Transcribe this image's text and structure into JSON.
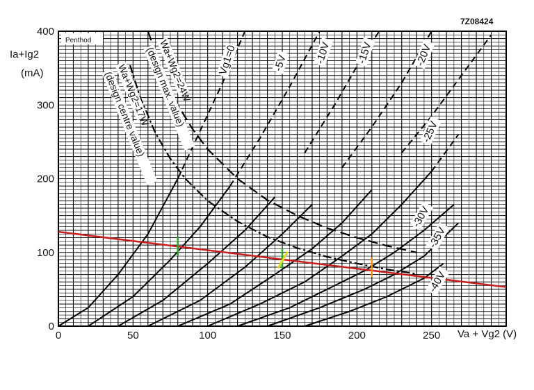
{
  "chart_data": {
    "type": "line",
    "ref_code": "7Z08424",
    "legend_box": "Penthod",
    "xlabel": "Va + Vg2 (V)",
    "ylabel": [
      "Ia+Ig2",
      "(mA)"
    ],
    "xlim": [
      0,
      300
    ],
    "ylim": [
      0,
      400
    ],
    "x_ticks": [
      0,
      50,
      100,
      150,
      200,
      250
    ],
    "y_ticks": [
      0,
      100,
      200,
      300,
      400
    ],
    "grid": true,
    "series": [
      {
        "name": "Vg1=0",
        "style": "solid-dashed",
        "points": [
          [
            0,
            0
          ],
          [
            20,
            25
          ],
          [
            40,
            70
          ],
          [
            60,
            125
          ],
          [
            80,
            200
          ],
          [
            95,
            265
          ],
          [
            110,
            330
          ],
          [
            125,
            400
          ]
        ]
      },
      {
        "name": "-5V",
        "style": "solid-dashed",
        "points": [
          [
            20,
            0
          ],
          [
            50,
            40
          ],
          [
            75,
            90
          ],
          [
            95,
            135
          ],
          [
            115,
            190
          ],
          [
            135,
            255
          ],
          [
            155,
            325
          ],
          [
            175,
            400
          ]
        ]
      },
      {
        "name": "-10V",
        "style": "solid-dashed",
        "points": [
          [
            40,
            0
          ],
          [
            70,
            35
          ],
          [
            100,
            85
          ],
          [
            125,
            130
          ],
          [
            145,
            175
          ],
          [
            165,
            235
          ],
          [
            185,
            300
          ],
          [
            205,
            370
          ],
          [
            215,
            400
          ]
        ]
      },
      {
        "name": "-15V",
        "style": "solid-dashed",
        "points": [
          [
            60,
            0
          ],
          [
            95,
            35
          ],
          [
            125,
            80
          ],
          [
            150,
            125
          ],
          [
            170,
            165
          ],
          [
            190,
            215
          ],
          [
            210,
            270
          ],
          [
            230,
            330
          ],
          [
            250,
            400
          ]
        ]
      },
      {
        "name": "-20V",
        "style": "solid-dashed",
        "points": [
          [
            80,
            0
          ],
          [
            115,
            30
          ],
          [
            145,
            70
          ],
          [
            170,
            105
          ],
          [
            190,
            140
          ],
          [
            210,
            185
          ],
          [
            230,
            235
          ],
          [
            250,
            285
          ],
          [
            270,
            340
          ],
          [
            290,
            395
          ]
        ]
      },
      {
        "name": "-25V",
        "style": "solid-dashed",
        "points": [
          [
            100,
            0
          ],
          [
            135,
            30
          ],
          [
            165,
            60
          ],
          [
            190,
            95
          ],
          [
            210,
            125
          ],
          [
            230,
            165
          ],
          [
            250,
            210
          ],
          [
            268,
            260
          ]
        ]
      },
      {
        "name": "-30V",
        "style": "solid-dashed",
        "points": [
          [
            120,
            0
          ],
          [
            155,
            25
          ],
          [
            185,
            55
          ],
          [
            205,
            75
          ],
          [
            225,
            100
          ],
          [
            245,
            130
          ],
          [
            265,
            165
          ]
        ]
      },
      {
        "name": "-35V",
        "style": "solid-dashed",
        "points": [
          [
            140,
            0
          ],
          [
            175,
            25
          ],
          [
            205,
            50
          ],
          [
            225,
            70
          ],
          [
            245,
            95
          ],
          [
            268,
            140
          ]
        ]
      },
      {
        "name": "-40V",
        "style": "solid-dashed",
        "points": [
          [
            165,
            0
          ],
          [
            195,
            20
          ],
          [
            220,
            40
          ],
          [
            245,
            65
          ],
          [
            258,
            85
          ]
        ]
      },
      {
        "name": "Wa+Wg2=24W (design max. value)",
        "style": "dashed-hyperbola",
        "points": [
          [
            60,
            400
          ],
          [
            70,
            343
          ],
          [
            80,
            300
          ],
          [
            90,
            267
          ],
          [
            100,
            240
          ],
          [
            120,
            200
          ],
          [
            140,
            171
          ],
          [
            160,
            150
          ],
          [
            180,
            133
          ],
          [
            200,
            120
          ],
          [
            220,
            109
          ],
          [
            240,
            100
          ]
        ]
      },
      {
        "name": "Wa+Wg2=17W (design centre value)",
        "style": "dash-dot-hyperbola",
        "points": [
          [
            48,
            354
          ],
          [
            55,
            309
          ],
          [
            65,
            262
          ],
          [
            75,
            227
          ],
          [
            85,
            200
          ],
          [
            100,
            170
          ],
          [
            120,
            142
          ],
          [
            140,
            121
          ],
          [
            160,
            106
          ],
          [
            180,
            94
          ],
          [
            200,
            85
          ],
          [
            220,
            77
          ],
          [
            240,
            71
          ]
        ]
      }
    ],
    "load_line": {
      "name": "",
      "color": "#c81e1e",
      "points": [
        [
          0,
          128
        ],
        [
          300,
          53
        ]
      ]
    },
    "markers": [
      {
        "x": 80,
        "y": 108,
        "color": "#22aa22"
      },
      {
        "x": 150,
        "y": 92,
        "color": "#22aa22"
      },
      {
        "x": 150,
        "y": 90,
        "color": "#dddd22"
      },
      {
        "x": 210,
        "y": 80,
        "color": "#ff8c1a"
      }
    ],
    "curve_labels": [
      "Vg1=0",
      "-5V",
      "-10V",
      "-15V",
      "-20V",
      "-25V",
      "-30V",
      "-35V",
      "-40V",
      "Wa+Wg2=24W",
      "(design max. value)",
      "Wa+Wg2=17W",
      "(design centre value)"
    ]
  }
}
